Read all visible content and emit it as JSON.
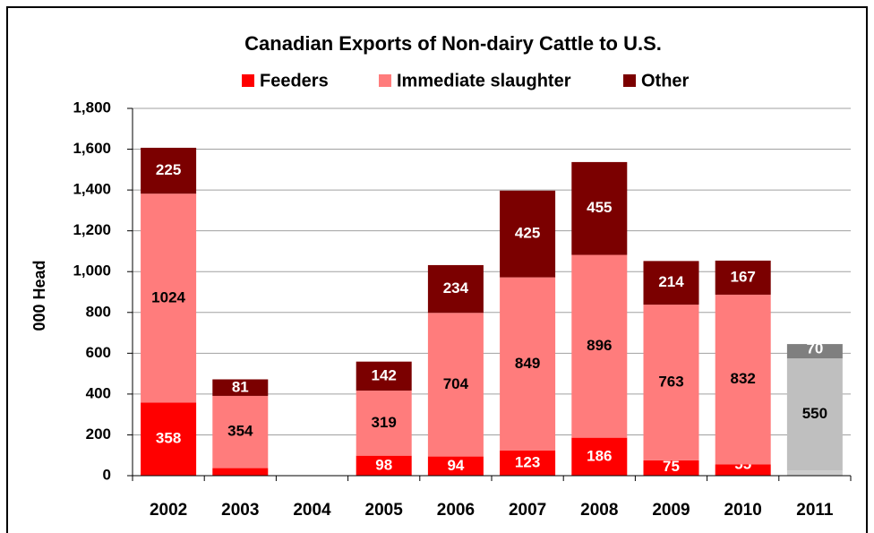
{
  "chart_data": {
    "type": "stacked_bar",
    "title": "Canadian Exports of Non-dairy Cattle to U.S.",
    "y_label": "000 Head",
    "categories": [
      "2002",
      "2003",
      "2004",
      "2005",
      "2006",
      "2007",
      "2008",
      "2009",
      "2010",
      "2011"
    ],
    "series": [
      {
        "name": "Feeders",
        "color": "#ff0000",
        "label_color": "#ffffff",
        "colors": [
          "#ff0000",
          "#ff0000",
          "#ff0000",
          "#ff0000",
          "#ff0000",
          "#ff0000",
          "#ff0000",
          "#ff0000",
          "#ff0000",
          "#cccccc"
        ],
        "values": [
          358,
          37,
          null,
          98,
          94,
          123,
          186,
          75,
          55,
          25
        ]
      },
      {
        "name": "Immediate slaughter",
        "color": "#ff7c7c",
        "label_color": "#000000",
        "colors": [
          "#ff7c7c",
          "#ff7c7c",
          "#ff7c7c",
          "#ff7c7c",
          "#ff7c7c",
          "#ff7c7c",
          "#ff7c7c",
          "#ff7c7c",
          "#ff7c7c",
          "#bfbfbf"
        ],
        "values": [
          1024,
          354,
          null,
          319,
          704,
          849,
          896,
          763,
          832,
          550
        ]
      },
      {
        "name": "Other",
        "color": "#7b0000",
        "label_color": "#ffffff",
        "colors": [
          "#7b0000",
          "#7b0000",
          "#7b0000",
          "#7b0000",
          "#7b0000",
          "#7b0000",
          "#7b0000",
          "#7b0000",
          "#7b0000",
          "#7f7f7f"
        ],
        "values": [
          225,
          81,
          null,
          142,
          234,
          425,
          455,
          214,
          167,
          70
        ]
      }
    ],
    "ylim": [
      0,
      1800
    ],
    "yticks": [
      0,
      200,
      400,
      600,
      800,
      {
        "value": 1000,
        "label": "1,000"
      },
      {
        "value": 1200,
        "label": "1,200"
      },
      {
        "value": 1400,
        "label": "1,400"
      },
      {
        "value": 1600,
        "label": "1,600"
      },
      {
        "value": 1800,
        "label": "1,800"
      }
    ],
    "grid": true,
    "legend": "top"
  }
}
